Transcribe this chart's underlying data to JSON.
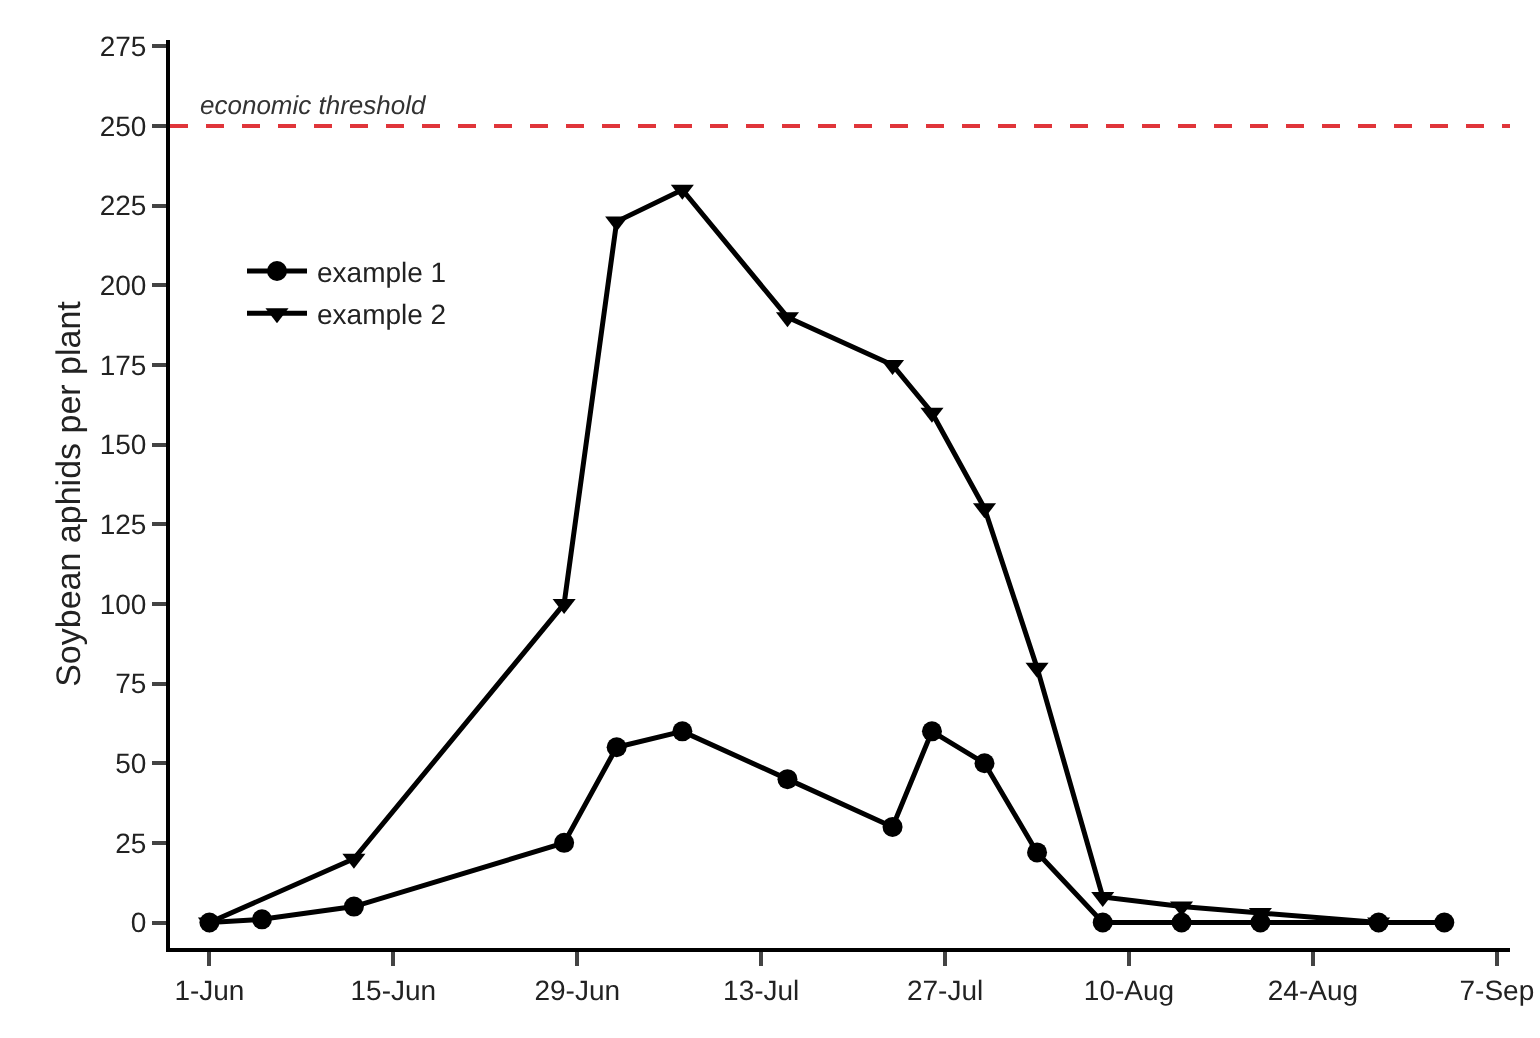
{
  "chart_data": {
    "type": "line",
    "ylabel": "Soybean aphids per plant",
    "x": [
      "--06-01",
      "--06-05",
      "--06-12",
      "--06-28",
      "--07-02",
      "--07-07",
      "--07-15",
      "--07-23",
      "--07-26",
      "--07-30",
      "--08-03",
      "--08-08",
      "--08-14",
      "--08-20",
      "--08-29",
      "--09-03"
    ],
    "series": [
      {
        "name": "example 1",
        "color": "#000000",
        "marker": "circle",
        "values": [
          0,
          1,
          5,
          25,
          55,
          60,
          45,
          30,
          60,
          50,
          22,
          0,
          0,
          0,
          0,
          0
        ]
      },
      {
        "name": "example 2",
        "color": "#000000",
        "marker": "triangle",
        "x": [
          "--06-01",
          "--06-05",
          "--06-12",
          "--06-28",
          "--07-02",
          "--07-07",
          "--07-15",
          "--07-23",
          "--07-26",
          "--07-30",
          "--08-03",
          "--08-08",
          "--08-14",
          "--08-20",
          "--08-29"
        ],
        "values": [
          0,
          null,
          20,
          100,
          220,
          230,
          190,
          175,
          160,
          130,
          80,
          8,
          5,
          3,
          0
        ]
      }
    ],
    "xlim": [
      "--05-29",
      "--09-08"
    ],
    "xticks": [
      {
        "value": "--06-01",
        "label": "1-Jun"
      },
      {
        "value": "--06-15",
        "label": "15-Jun"
      },
      {
        "value": "--06-29",
        "label": "29-Jun"
      },
      {
        "value": "--07-13",
        "label": "13-Jul"
      },
      {
        "value": "--07-27",
        "label": "27-Jul"
      },
      {
        "value": "--08-10",
        "label": "10-Aug"
      },
      {
        "value": "--08-24",
        "label": "24-Aug"
      },
      {
        "value": "--09-07",
        "label": "7-Sep"
      }
    ],
    "ylim": [
      -8,
      277
    ],
    "yticks": [
      0,
      25,
      50,
      75,
      100,
      125,
      150,
      175,
      200,
      225,
      250,
      275
    ],
    "ref_lines": [
      {
        "axis": "y",
        "value": 250,
        "label": "economic threshold",
        "color": "#e0353a",
        "line_style": "dashed"
      }
    ],
    "grid": false,
    "legend": "top left",
    "line_style": "solid"
  }
}
